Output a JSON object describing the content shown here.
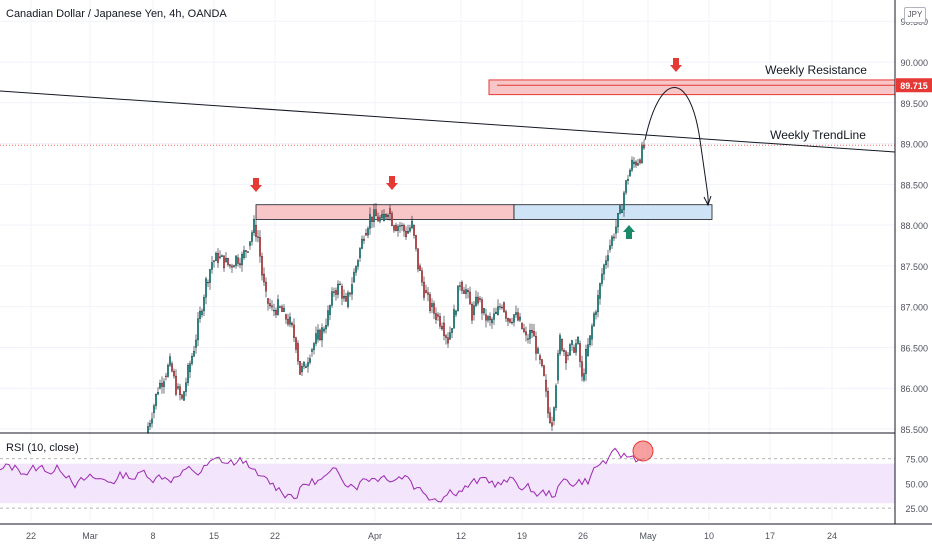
{
  "header": {
    "title": "Canadian Dollar / Japanese Yen, 4h, OANDA",
    "currency_badge": "JPY"
  },
  "rsi_panel": {
    "label": "RSI (10, close)"
  },
  "annotations": {
    "weekly_resistance": "Weekly Resistance",
    "weekly_trendline": "Weekly TrendLine",
    "price_marker": "89.715"
  },
  "colors": {
    "up_candle": "#26a69a",
    "down_candle": "#ef5350",
    "candle_wick": "#131722",
    "resistance_fill": "#f8c6c6",
    "resistance_border": "#e53935",
    "support_fill": "#cfe3f6",
    "down_arrow": "#e53935",
    "up_arrow": "#1b8a6b",
    "rsi_line": "#9c27b0",
    "rsi_band": "#f3e5fb",
    "price_marker_bg": "#e53935",
    "grid": "#f0f3fa",
    "axis_text": "#50535e"
  },
  "chart_data": {
    "type": "candlestick",
    "symbol": "CADJPY",
    "interval": "4h",
    "price_axis": {
      "ticks": [
        "85.500",
        "86.000",
        "86.500",
        "87.000",
        "87.500",
        "88.000",
        "88.500",
        "89.000",
        "89.500",
        "90.000",
        "90.500"
      ],
      "range": [
        85.45,
        90.6
      ]
    },
    "time_axis": {
      "ticks": [
        "22",
        "Mar",
        "8",
        "15",
        "22",
        "Apr",
        "12",
        "19",
        "26",
        "May",
        "10",
        "17",
        "24"
      ]
    },
    "path": [
      [
        "Feb 26",
        85.5
      ],
      [
        "Feb 27",
        85.8
      ],
      [
        "Feb 28",
        86.2
      ],
      [
        "Mar 1",
        86.6
      ],
      [
        "Mar 2",
        87.0
      ],
      [
        "Mar 3",
        87.4
      ],
      [
        "Mar 4",
        87.5
      ],
      [
        "Mar 5",
        87.6
      ],
      [
        "Mar 6",
        88.0
      ],
      [
        "Mar 7",
        87.9
      ],
      [
        "Mar 8",
        87.4
      ],
      [
        "Mar 9",
        86.8
      ],
      [
        "Mar 10",
        86.5
      ],
      [
        "Mar 11",
        86.3
      ],
      [
        "Mar 12",
        86.2
      ],
      [
        "Mar 13",
        86.8
      ],
      [
        "Mar 14",
        87.4
      ],
      [
        "Mar 15",
        87.9
      ],
      [
        "Mar 16",
        88.2
      ],
      [
        "Mar 17",
        88.1
      ],
      [
        "Mar 18",
        87.8
      ],
      [
        "Mar 19",
        87.5
      ],
      [
        "Mar 20",
        87.1
      ],
      [
        "Mar 21",
        86.9
      ],
      [
        "Mar 22",
        86.5
      ],
      [
        "Mar 23",
        86.2
      ],
      [
        "Mar 24",
        85.8
      ],
      [
        "Mar 25",
        85.6
      ],
      [
        "Mar 26",
        86.4
      ],
      [
        "Mar 27",
        86.6
      ],
      [
        "Mar 28",
        86.5
      ],
      [
        "Mar 29",
        87.2
      ],
      [
        "Mar 30",
        87.8
      ],
      [
        "Mar 31",
        88.1
      ],
      [
        "Apr 1",
        88.9
      ]
    ],
    "ohlc_path": [
      [
        85.45,
        85.55
      ],
      [
        85.55,
        86.0
      ],
      [
        86.0,
        85.8
      ],
      [
        85.8,
        86.3
      ],
      [
        86.3,
        86.6
      ],
      [
        86.6,
        87.3
      ],
      [
        87.3,
        87.5
      ],
      [
        87.5,
        87.6
      ],
      [
        87.6,
        87.5
      ],
      [
        87.5,
        88.0
      ],
      [
        88.0,
        87.8
      ],
      [
        87.8,
        87.2
      ],
      [
        87.2,
        86.9
      ],
      [
        86.9,
        86.6
      ],
      [
        86.6,
        86.2
      ],
      [
        86.2,
        86.4
      ],
      [
        86.4,
        86.9
      ],
      [
        86.9,
        87.3
      ],
      [
        87.3,
        87.8
      ],
      [
        87.8,
        88.2
      ],
      [
        88.2,
        88.0
      ],
      [
        88.0,
        87.7
      ],
      [
        87.7,
        87.3
      ],
      [
        87.3,
        86.8
      ],
      [
        86.8,
        87.0
      ],
      [
        87.0,
        86.8
      ],
      [
        86.8,
        86.6
      ],
      [
        86.6,
        86.2
      ],
      [
        86.2,
        85.6
      ],
      [
        85.6,
        86.4
      ],
      [
        86.4,
        86.7
      ],
      [
        86.7,
        86.5
      ],
      [
        86.5,
        87.4
      ],
      [
        87.4,
        87.9
      ],
      [
        87.9,
        88.3
      ],
      [
        88.3,
        88.9
      ]
    ],
    "zones": [
      {
        "kind": "resistance",
        "low": 89.6,
        "high": 89.78
      },
      {
        "kind": "breakout",
        "low": 88.07,
        "high": 88.25
      },
      {
        "kind": "support",
        "low": 88.07,
        "high": 88.25
      }
    ],
    "rsi": {
      "period": 10,
      "levels": [
        75,
        50,
        25
      ],
      "band": [
        30,
        70
      ],
      "axis_ticks": [
        "75.00",
        "50.00",
        "25.00"
      ]
    }
  }
}
